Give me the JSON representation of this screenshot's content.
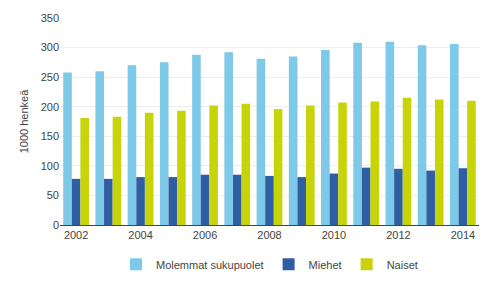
{
  "chart_data": {
    "type": "bar",
    "y_label": "1000 henkeä",
    "categories": [
      "2002",
      null,
      "2004",
      null,
      "2006",
      null,
      "2008",
      null,
      "2010",
      null,
      "2012",
      null,
      "2014"
    ],
    "series": [
      {
        "name": "Molemmat sukupuolet",
        "color": "#7ec8e8",
        "values": [
          258,
          260,
          270,
          275,
          288,
          292,
          281,
          285,
          296,
          308,
          310,
          304,
          306
        ]
      },
      {
        "name": "Miehet",
        "color": "#2e5fa3",
        "values": [
          78,
          78,
          81,
          81,
          85,
          85,
          83,
          81,
          87,
          97,
          95,
          92,
          96
        ]
      },
      {
        "name": "Naiset",
        "color": "#c8d40a",
        "values": [
          181,
          183,
          190,
          193,
          202,
          205,
          196,
          202,
          207,
          209,
          215,
          212,
          210
        ]
      }
    ],
    "ylim": [
      0,
      350
    ],
    "yticks": [
      0,
      50,
      100,
      150,
      200,
      250,
      300,
      350
    ],
    "grid": true,
    "legend": "bottom"
  }
}
